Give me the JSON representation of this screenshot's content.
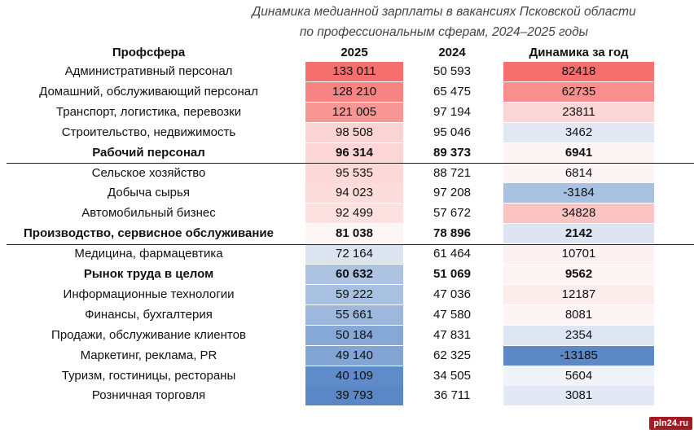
{
  "chart_data": {
    "type": "table",
    "title_line1": "Динамика медианной зарплаты в вакансиях Псковской области",
    "title_line2": "по профессиональным сферам, 2024–2025 годы",
    "columns": [
      "Профсфера",
      "2025",
      "2024",
      "Динамика за год"
    ],
    "rows": [
      {
        "sphere": "Административный персонал",
        "v2025": "133 011",
        "v2024": "50 593",
        "dyn": "82418",
        "bold": false,
        "c2025": "#f56f6f",
        "cdyn": "#f56f6f"
      },
      {
        "sphere": "Домашний, обслуживающий персонал",
        "v2025": "128 210",
        "v2024": "65 475",
        "dyn": "62735",
        "bold": false,
        "c2025": "#f78383",
        "cdyn": "#f88f8f"
      },
      {
        "sphere": "Транспорт, логистика, перевозки",
        "v2025": "121 005",
        "v2024": "97 194",
        "dyn": "23811",
        "bold": false,
        "c2025": "#f89595",
        "cdyn": "#fbd6d6"
      },
      {
        "sphere": "Строительство, недвижимость",
        "v2025": "98 508",
        "v2024": "95 046",
        "dyn": "3462",
        "bold": false,
        "c2025": "#fcd3d3",
        "cdyn": "#e1e8f4"
      },
      {
        "sphere": "Рабочий персонал",
        "v2025": "96 314",
        "v2024": "89 373",
        "dyn": "6941",
        "bold": true,
        "c2025": "#fcd6d6",
        "cdyn": "#fdf4f4"
      },
      {
        "sphere": "Сельское хозяйство",
        "v2025": "95 535",
        "v2024": "88 721",
        "dyn": "6814",
        "bold": false,
        "c2025": "#fcd8d8",
        "cdyn": "#fdf5f5"
      },
      {
        "sphere": "Добыча сырья",
        "v2025": "94 023",
        "v2024": "97 208",
        "dyn": "-3184",
        "bold": false,
        "c2025": "#fddcdc",
        "cdyn": "#a9c1e0"
      },
      {
        "sphere": "Автомобильный бизнес",
        "v2025": "92 499",
        "v2024": "57 672",
        "dyn": "34828",
        "bold": false,
        "c2025": "#fde0e0",
        "cdyn": "#fbc4c4"
      },
      {
        "sphere": "Производство, сервисное обслуживание",
        "v2025": "81 038",
        "v2024": "78 896",
        "dyn": "2142",
        "bold": true,
        "c2025": "#fef5f5",
        "cdyn": "#dde5f2"
      },
      {
        "sphere": "Медицина, фармацевтика",
        "v2025": "72 164",
        "v2024": "61 464",
        "dyn": "10701",
        "bold": false,
        "c2025": "#dce4f2",
        "cdyn": "#fdf0f0"
      },
      {
        "sphere": "Рынок труда в целом",
        "v2025": "60 632",
        "v2024": "51 069",
        "dyn": "9562",
        "bold": true,
        "c2025": "#adc3e2",
        "cdyn": "#fdf3f3"
      },
      {
        "sphere": "Информационные технологии",
        "v2025": "59 222",
        "v2024": "47 036",
        "dyn": "12187",
        "bold": false,
        "c2025": "#a9c1e1",
        "cdyn": "#fcecec"
      },
      {
        "sphere": "Финансы, бухгалтерия",
        "v2025": "55 661",
        "v2024": "47 580",
        "dyn": "8081",
        "bold": false,
        "c2025": "#9cb8dd",
        "cdyn": "#fdf5f5"
      },
      {
        "sphere": "Продажи, обслуживание клиентов",
        "v2025": "50 184",
        "v2024": "47 831",
        "dyn": "2354",
        "bold": false,
        "c2025": "#86a8d6",
        "cdyn": "#dfe6f3"
      },
      {
        "sphere": "Маркетинг, реклама, PR",
        "v2025": "49 140",
        "v2024": "62 325",
        "dyn": "-13185",
        "bold": false,
        "c2025": "#82a5d4",
        "cdyn": "#5c88c6"
      },
      {
        "sphere": "Туризм, гостиницы, рестораны",
        "v2025": "40 109",
        "v2024": "34 505",
        "dyn": "5604",
        "bold": false,
        "c2025": "#5f8bc8",
        "cdyn": "#f0f3f9"
      },
      {
        "sphere": "Розничная торговля",
        "v2025": "39 793",
        "v2024": "36 711",
        "dyn": "3081",
        "bold": false,
        "c2025": "#5a87c6",
        "cdyn": "#e2e9f4"
      }
    ],
    "separators_after_rows": [
      4,
      8
    ]
  },
  "watermark": "pln24.ru"
}
